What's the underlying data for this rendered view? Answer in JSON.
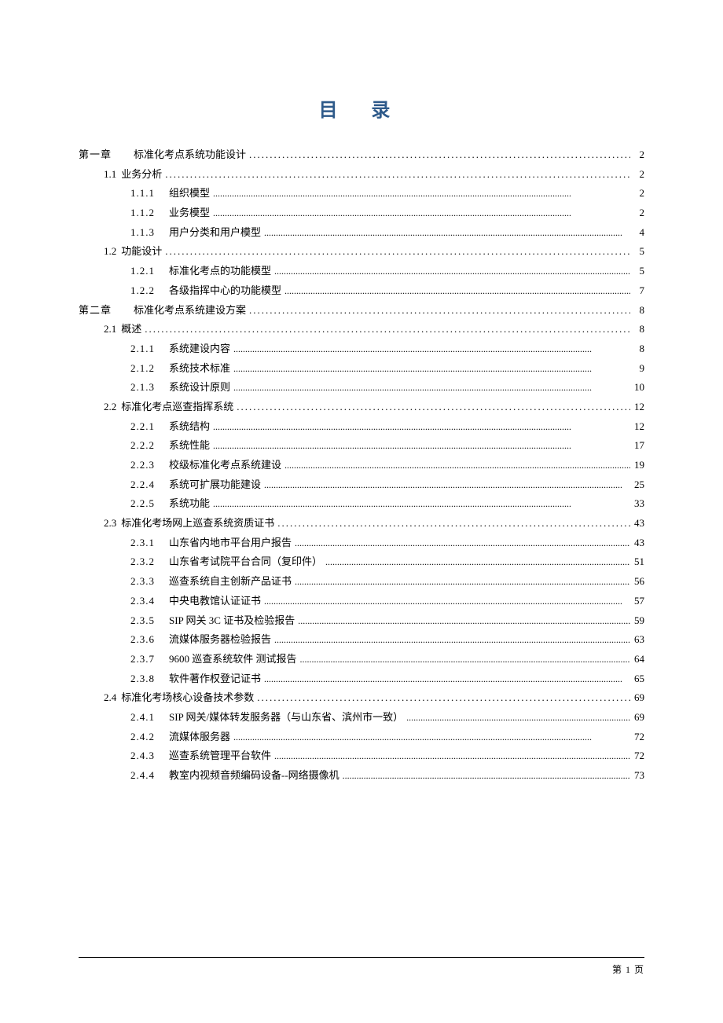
{
  "title": "目 录",
  "title_color": "#2e5a8a",
  "title_fontsize": 24,
  "body_fontsize": 13,
  "text_color": "#000000",
  "background_color": "#ffffff",
  "footer_text": "第 1 页",
  "entries": [
    {
      "level": 1,
      "num": "第一章",
      "text": "标准化考点系统功能设计",
      "page": "2"
    },
    {
      "level": 2,
      "num": "1.1",
      "text": "业务分析",
      "page": "2"
    },
    {
      "level": 3,
      "num": "1.1.1",
      "text": "组织模型",
      "page": "2"
    },
    {
      "level": 3,
      "num": "1.1.2",
      "text": "业务模型",
      "page": "2"
    },
    {
      "level": 3,
      "num": "1.1.3",
      "text": "用户分类和用户模型",
      "page": "4"
    },
    {
      "level": 2,
      "num": "1.2",
      "text": "功能设计",
      "page": "5"
    },
    {
      "level": 3,
      "num": "1.2.1",
      "text": "标准化考点的功能模型",
      "page": "5"
    },
    {
      "level": 3,
      "num": "1.2.2",
      "text": "各级指挥中心的功能模型",
      "page": "7"
    },
    {
      "level": 1,
      "num": "第二章",
      "text": "标准化考点系统建设方案",
      "page": "8"
    },
    {
      "level": 2,
      "num": "2.1",
      "text": "概述",
      "page": "8"
    },
    {
      "level": 3,
      "num": "2.1.1",
      "text": "系统建设内容",
      "page": "8"
    },
    {
      "level": 3,
      "num": "2.1.2",
      "text": "系统技术标准",
      "page": "9"
    },
    {
      "level": 3,
      "num": "2.1.3",
      "text": "系统设计原则",
      "page": "10"
    },
    {
      "level": 2,
      "num": "2.2",
      "text": "标准化考点巡查指挥系统",
      "page": "12"
    },
    {
      "level": 3,
      "num": "2.2.1",
      "text": "系统结构",
      "page": "12"
    },
    {
      "level": 3,
      "num": "2.2.2",
      "text": "系统性能",
      "page": "17"
    },
    {
      "level": 3,
      "num": "2.2.3",
      "text": "校级标准化考点系统建设",
      "page": "19"
    },
    {
      "level": 3,
      "num": "2.2.4",
      "text": "系统可扩展功能建设",
      "page": "25"
    },
    {
      "level": 3,
      "num": "2.2.5",
      "text": "系统功能",
      "page": "33"
    },
    {
      "level": 2,
      "num": "2.3",
      "text": "标准化考场网上巡查系统资质证书",
      "page": "43"
    },
    {
      "level": 3,
      "num": "2.3.1",
      "text": "山东省内地市平台用户报告",
      "page": "43"
    },
    {
      "level": 3,
      "num": "2.3.2",
      "text": "山东省考试院平台合同（复印件）",
      "page": "51"
    },
    {
      "level": 3,
      "num": "2.3.3",
      "text": "巡查系统自主创新产品证书",
      "page": "56"
    },
    {
      "level": 3,
      "num": "2.3.4",
      "text": "中央电教馆认证证书",
      "page": "57"
    },
    {
      "level": 3,
      "num": "2.3.5",
      "text": "SIP 网关 3C 证书及检验报告",
      "page": "59"
    },
    {
      "level": 3,
      "num": "2.3.6",
      "text": "流媒体服务器检验报告",
      "page": "63"
    },
    {
      "level": 3,
      "num": "2.3.7",
      "text": "9600 巡查系统软件 测试报告",
      "page": "64"
    },
    {
      "level": 3,
      "num": "2.3.8",
      "text": "软件著作权登记证书",
      "page": "65"
    },
    {
      "level": 2,
      "num": "2.4",
      "text": "标准化考场核心设备技术参数",
      "page": "69"
    },
    {
      "level": 3,
      "num": "2.4.1",
      "text": "SIP 网关/媒体转发服务器（与山东省、滨州市一致）",
      "page": "69"
    },
    {
      "level": 3,
      "num": "2.4.2",
      "text": "流媒体服务器 ",
      "page": " 72"
    },
    {
      "level": 3,
      "num": "2.4.3",
      "text": "巡查系统管理平台软件",
      "page": "72"
    },
    {
      "level": 3,
      "num": "2.4.4",
      "text": "教室内视频音频编码设备--网络摄像机",
      "page": "73"
    }
  ]
}
